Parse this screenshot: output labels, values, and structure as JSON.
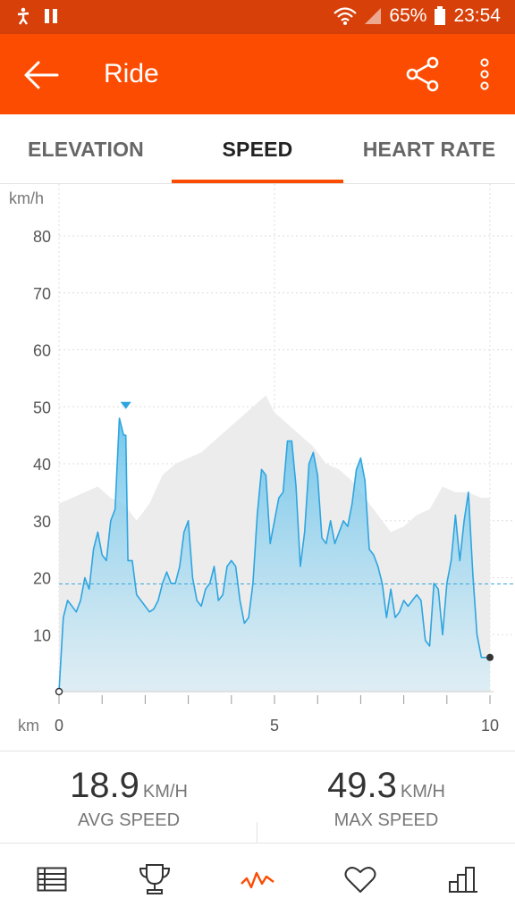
{
  "status_bar": {
    "battery": "65%",
    "time": "23:54",
    "icons": [
      "accessibility-icon",
      "pause-icon",
      "wifi-icon",
      "signal-icon",
      "battery-icon"
    ]
  },
  "app_bar": {
    "title": "Ride",
    "icons": [
      "back-arrow-icon",
      "share-icon",
      "more-vert-icon"
    ],
    "color": "#fc4c02"
  },
  "tabs": [
    {
      "label": "ELEVATION",
      "active": false
    },
    {
      "label": "SPEED",
      "active": true
    },
    {
      "label": "HEART RATE",
      "active": false
    }
  ],
  "chart_data": {
    "type": "area",
    "ylabel": "km/h",
    "xlabel": "km",
    "yticks": [
      "10",
      "20",
      "30",
      "40",
      "50",
      "60",
      "70",
      "80"
    ],
    "xticks": [
      "0",
      "5",
      "10"
    ],
    "ylim": [
      0,
      80
    ],
    "xlim": [
      0,
      10
    ],
    "average_line": 18.9,
    "max_marker": {
      "x": 1.55,
      "y": 49.3
    },
    "series": [
      {
        "role": "speed",
        "color": "#2ea5e0",
        "x": [
          0,
          0.1,
          0.2,
          0.3,
          0.4,
          0.5,
          0.6,
          0.7,
          0.8,
          0.9,
          1.0,
          1.1,
          1.2,
          1.3,
          1.4,
          1.5,
          1.55,
          1.6,
          1.7,
          1.8,
          1.9,
          2.0,
          2.1,
          2.2,
          2.3,
          2.4,
          2.5,
          2.6,
          2.7,
          2.8,
          2.9,
          3.0,
          3.1,
          3.2,
          3.3,
          3.4,
          3.5,
          3.6,
          3.7,
          3.8,
          3.9,
          4.0,
          4.1,
          4.2,
          4.3,
          4.4,
          4.5,
          4.6,
          4.7,
          4.8,
          4.9,
          5.0,
          5.1,
          5.2,
          5.3,
          5.4,
          5.5,
          5.6,
          5.7,
          5.8,
          5.9,
          6.0,
          6.1,
          6.2,
          6.3,
          6.4,
          6.5,
          6.6,
          6.7,
          6.8,
          6.9,
          7.0,
          7.1,
          7.2,
          7.3,
          7.4,
          7.5,
          7.6,
          7.7,
          7.8,
          7.9,
          8.0,
          8.1,
          8.2,
          8.3,
          8.4,
          8.5,
          8.6,
          8.7,
          8.8,
          8.9,
          9.0,
          9.1,
          9.2,
          9.3,
          9.4,
          9.5,
          9.6,
          9.7,
          9.8,
          9.9,
          10.0
        ],
        "values": [
          0,
          13,
          16,
          15,
          14,
          16,
          20,
          18,
          25,
          28,
          24,
          23,
          30,
          32,
          48,
          45,
          45,
          23,
          23,
          17,
          16,
          15,
          14,
          14.5,
          16,
          19,
          21,
          19,
          19,
          22,
          28,
          30,
          20,
          16,
          15,
          18,
          19,
          22,
          16,
          17,
          22,
          23,
          22,
          16,
          12,
          13,
          19,
          31,
          39,
          38,
          26,
          30,
          34,
          35,
          44,
          44,
          36,
          22,
          28,
          40,
          42,
          38,
          27,
          26,
          30,
          26,
          28,
          30,
          29,
          33,
          39,
          41,
          37,
          25,
          24,
          22,
          19,
          13,
          18,
          13,
          14,
          16,
          15,
          16,
          17,
          16,
          9,
          8,
          19,
          18,
          10,
          19,
          23,
          31,
          23,
          30,
          35,
          21,
          10,
          6,
          6,
          6
        ]
      },
      {
        "role": "elevation",
        "color": "#ececec",
        "x": [
          0,
          0.3,
          0.6,
          0.9,
          1.2,
          1.5,
          1.8,
          2.1,
          2.4,
          2.7,
          3.0,
          3.3,
          3.6,
          3.9,
          4.2,
          4.5,
          4.8,
          5.0,
          5.3,
          5.6,
          5.9,
          6.2,
          6.5,
          6.8,
          7.1,
          7.4,
          7.7,
          8.0,
          8.3,
          8.6,
          8.9,
          9.2,
          9.5,
          9.8,
          10.0
        ],
        "values": [
          33,
          34,
          35,
          36,
          34,
          33,
          30,
          33,
          38,
          40,
          41,
          42,
          44,
          46,
          48,
          50,
          52,
          49,
          47,
          45,
          43,
          40,
          39,
          37,
          34,
          31,
          28,
          29,
          31,
          32,
          36,
          35,
          35,
          34,
          34
        ]
      }
    ]
  },
  "stats": [
    {
      "value": "18.9",
      "unit": "KM/H",
      "label": "AVG SPEED"
    },
    {
      "value": "49.3",
      "unit": "KM/H",
      "label": "MAX SPEED"
    }
  ],
  "bottom_nav": {
    "items": [
      "list-icon",
      "trophy-icon",
      "activity-graph-icon",
      "heart-icon",
      "bar-chart-icon"
    ],
    "active": "activity-graph-icon"
  }
}
